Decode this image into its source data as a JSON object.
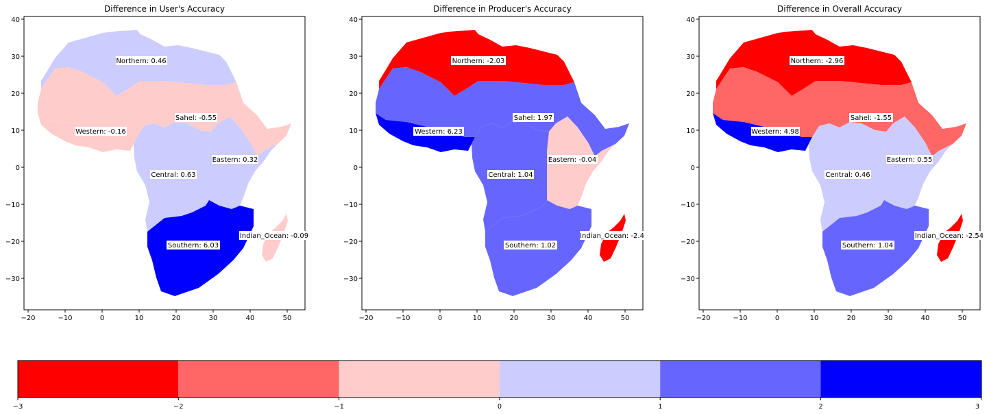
{
  "palette": {
    "red_strong": "#ff0000",
    "red_mid": "#ff6666",
    "red_light": "#ffcccc",
    "blue_light": "#ccccff",
    "blue_mid": "#6666ff",
    "blue_strong": "#0000ff"
  },
  "axes": {
    "x_ticks": [
      "−20",
      "−10",
      "0",
      "10",
      "20",
      "30",
      "40",
      "50"
    ],
    "y_ticks": [
      "40",
      "30",
      "20",
      "10",
      "0",
      "−10",
      "−20",
      "−30"
    ]
  },
  "maps": [
    {
      "title": "Difference in User's Accuracy",
      "regions": [
        {
          "key": "northern",
          "label": "Northern: 0.46",
          "value": 0.46
        },
        {
          "key": "sahel",
          "label": "Sahel: -0.55",
          "value": -0.55
        },
        {
          "key": "western",
          "label": "Western: -0.16",
          "value": -0.16
        },
        {
          "key": "eastern",
          "label": "Eastern: 0.32",
          "value": 0.32
        },
        {
          "key": "central",
          "label": "Central: 0.63",
          "value": 0.63
        },
        {
          "key": "southern",
          "label": "Southern: 6.03",
          "value": 6.03
        },
        {
          "key": "indian_ocean",
          "label": "Indian_Ocean: -0.09",
          "value": -0.09
        }
      ]
    },
    {
      "title": "Difference in Producer's Accuracy",
      "regions": [
        {
          "key": "northern",
          "label": "Northern: -2.03",
          "value": -2.03
        },
        {
          "key": "sahel",
          "label": "Sahel: 1.97",
          "value": 1.97
        },
        {
          "key": "western",
          "label": "Western: 6.23",
          "value": 6.23
        },
        {
          "key": "eastern",
          "label": "Eastern: -0.04",
          "value": -0.04
        },
        {
          "key": "central",
          "label": "Central: 1.04",
          "value": 1.04
        },
        {
          "key": "southern",
          "label": "Southern: 1.02",
          "value": 1.02
        },
        {
          "key": "indian_ocean",
          "label": "Indian_Ocean: -2.4",
          "value": -2.4
        }
      ]
    },
    {
      "title": "Difference in Overall Accuracy",
      "regions": [
        {
          "key": "northern",
          "label": "Northern: -2.96",
          "value": -2.96
        },
        {
          "key": "sahel",
          "label": "Sahel: -1.55",
          "value": -1.55
        },
        {
          "key": "western",
          "label": "Western: 4.98",
          "value": 4.98
        },
        {
          "key": "eastern",
          "label": "Eastern: 0.55",
          "value": 0.55
        },
        {
          "key": "central",
          "label": "Central: 0.46",
          "value": 0.46
        },
        {
          "key": "southern",
          "label": "Southern: 1.04",
          "value": 1.04
        },
        {
          "key": "indian_ocean",
          "label": "Indian_Ocean: -2.54",
          "value": -2.54
        }
      ]
    }
  ],
  "colorbar": {
    "bins": [
      -3,
      -2,
      -1,
      0,
      1,
      2,
      3
    ],
    "tick_labels": [
      "−3",
      "−2",
      "−1",
      "0",
      "1",
      "2",
      "3"
    ]
  }
}
